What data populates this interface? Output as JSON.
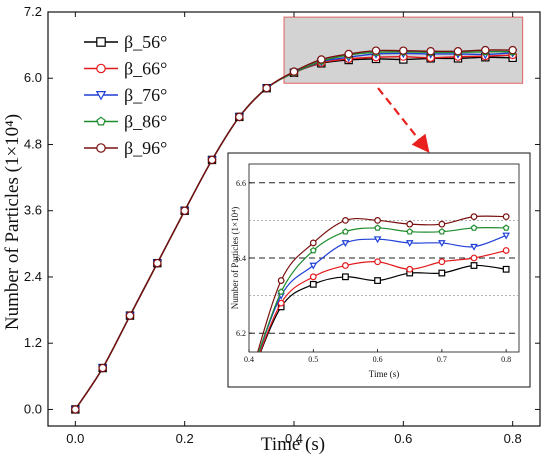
{
  "chart_data": [
    {
      "type": "line",
      "xlabel": "Time (s)",
      "ylabel": "Number of Particles (1×10⁴)",
      "xlim": [
        -0.05,
        0.85
      ],
      "ylim": [
        -0.3,
        7.2
      ],
      "xticks": [
        0.0,
        0.2,
        0.4,
        0.6,
        0.8
      ],
      "xtick_labels": [
        "0.0",
        "0.2",
        "0.4",
        "0.6",
        "0.8"
      ],
      "yticks": [
        0.0,
        1.2,
        2.4,
        3.6,
        4.8,
        6.0,
        7.2
      ],
      "ytick_labels": [
        "0.0",
        "1.2",
        "2.4",
        "3.6",
        "4.8",
        "6.0",
        "7.2"
      ],
      "legend_position": "top-left",
      "x": [
        0.0,
        0.05,
        0.1,
        0.15,
        0.2,
        0.25,
        0.3,
        0.35,
        0.4,
        0.45,
        0.5,
        0.55,
        0.6,
        0.65,
        0.7,
        0.75,
        0.8
      ],
      "series": [
        {
          "name": "β_56°",
          "color": "#000000",
          "marker": "square",
          "values": [
            0.0,
            0.75,
            1.7,
            2.65,
            3.6,
            4.52,
            5.3,
            5.82,
            6.1,
            6.27,
            6.33,
            6.35,
            6.34,
            6.36,
            6.36,
            6.38,
            6.37
          ]
        },
        {
          "name": "β_66°",
          "color": "#e31a1c",
          "marker": "circle",
          "values": [
            0.0,
            0.75,
            1.7,
            2.65,
            3.6,
            4.52,
            5.3,
            5.82,
            6.1,
            6.28,
            6.35,
            6.38,
            6.39,
            6.37,
            6.39,
            6.4,
            6.42
          ]
        },
        {
          "name": "β_76°",
          "color": "#1f3fd6",
          "marker": "triangle-down",
          "values": [
            0.0,
            0.75,
            1.7,
            2.65,
            3.6,
            4.52,
            5.3,
            5.82,
            6.1,
            6.3,
            6.38,
            6.44,
            6.45,
            6.44,
            6.44,
            6.43,
            6.46
          ]
        },
        {
          "name": "β_86°",
          "color": "#1e8c2c",
          "marker": "pentagon",
          "values": [
            0.0,
            0.75,
            1.7,
            2.65,
            3.6,
            4.52,
            5.3,
            5.82,
            6.1,
            6.31,
            6.42,
            6.47,
            6.48,
            6.47,
            6.47,
            6.48,
            6.48
          ]
        },
        {
          "name": "β_96°",
          "color": "#7a1010",
          "marker": "circle",
          "values": [
            0.0,
            0.75,
            1.7,
            2.65,
            3.6,
            4.52,
            5.3,
            5.82,
            6.12,
            6.34,
            6.44,
            6.5,
            6.5,
            6.49,
            6.49,
            6.51,
            6.51
          ]
        }
      ],
      "zoom_region": {
        "x": [
          0.4,
          0.8
        ],
        "y": [
          6.0,
          6.6
        ]
      }
    },
    {
      "type": "line",
      "xlabel": "Time (s)",
      "ylabel": "Number of Particles (1×10⁴)",
      "xlim": [
        0.4,
        0.82
      ],
      "ylim": [
        6.15,
        6.65
      ],
      "xticks": [
        0.4,
        0.5,
        0.6,
        0.7,
        0.8
      ],
      "xtick_labels": [
        "0.4",
        "0.5",
        "0.6",
        "0.7",
        "0.8"
      ],
      "yticks": [
        6.2,
        6.4,
        6.6
      ],
      "ytick_labels": [
        "6.2",
        "6.4",
        "6.6"
      ],
      "grid_major_dashed_y": [
        6.2,
        6.4,
        6.6
      ],
      "grid_minor_dotted_y": [
        6.3,
        6.5
      ],
      "x": [
        0.45,
        0.5,
        0.55,
        0.6,
        0.65,
        0.7,
        0.75,
        0.8
      ],
      "series": [
        {
          "name": "β_56°",
          "color": "#000000",
          "marker": "square",
          "values": [
            6.27,
            6.33,
            6.35,
            6.34,
            6.36,
            6.36,
            6.38,
            6.37
          ]
        },
        {
          "name": "β_66°",
          "color": "#e31a1c",
          "marker": "circle",
          "values": [
            6.28,
            6.35,
            6.38,
            6.39,
            6.37,
            6.39,
            6.4,
            6.42
          ]
        },
        {
          "name": "β_76°",
          "color": "#1f3fd6",
          "marker": "triangle-down",
          "values": [
            6.3,
            6.38,
            6.44,
            6.45,
            6.44,
            6.44,
            6.43,
            6.46
          ]
        },
        {
          "name": "β_86°",
          "color": "#1e8c2c",
          "marker": "pentagon",
          "values": [
            6.31,
            6.42,
            6.47,
            6.48,
            6.47,
            6.47,
            6.48,
            6.48
          ]
        },
        {
          "name": "β_96°",
          "color": "#7a1010",
          "marker": "circle",
          "values": [
            6.34,
            6.44,
            6.5,
            6.5,
            6.49,
            6.49,
            6.51,
            6.51
          ]
        }
      ]
    }
  ],
  "annotation": {
    "arrow_color": "#e8201e",
    "zoom_box_fill": "#d3d3d3",
    "zoom_box_stroke": "#e06060"
  }
}
